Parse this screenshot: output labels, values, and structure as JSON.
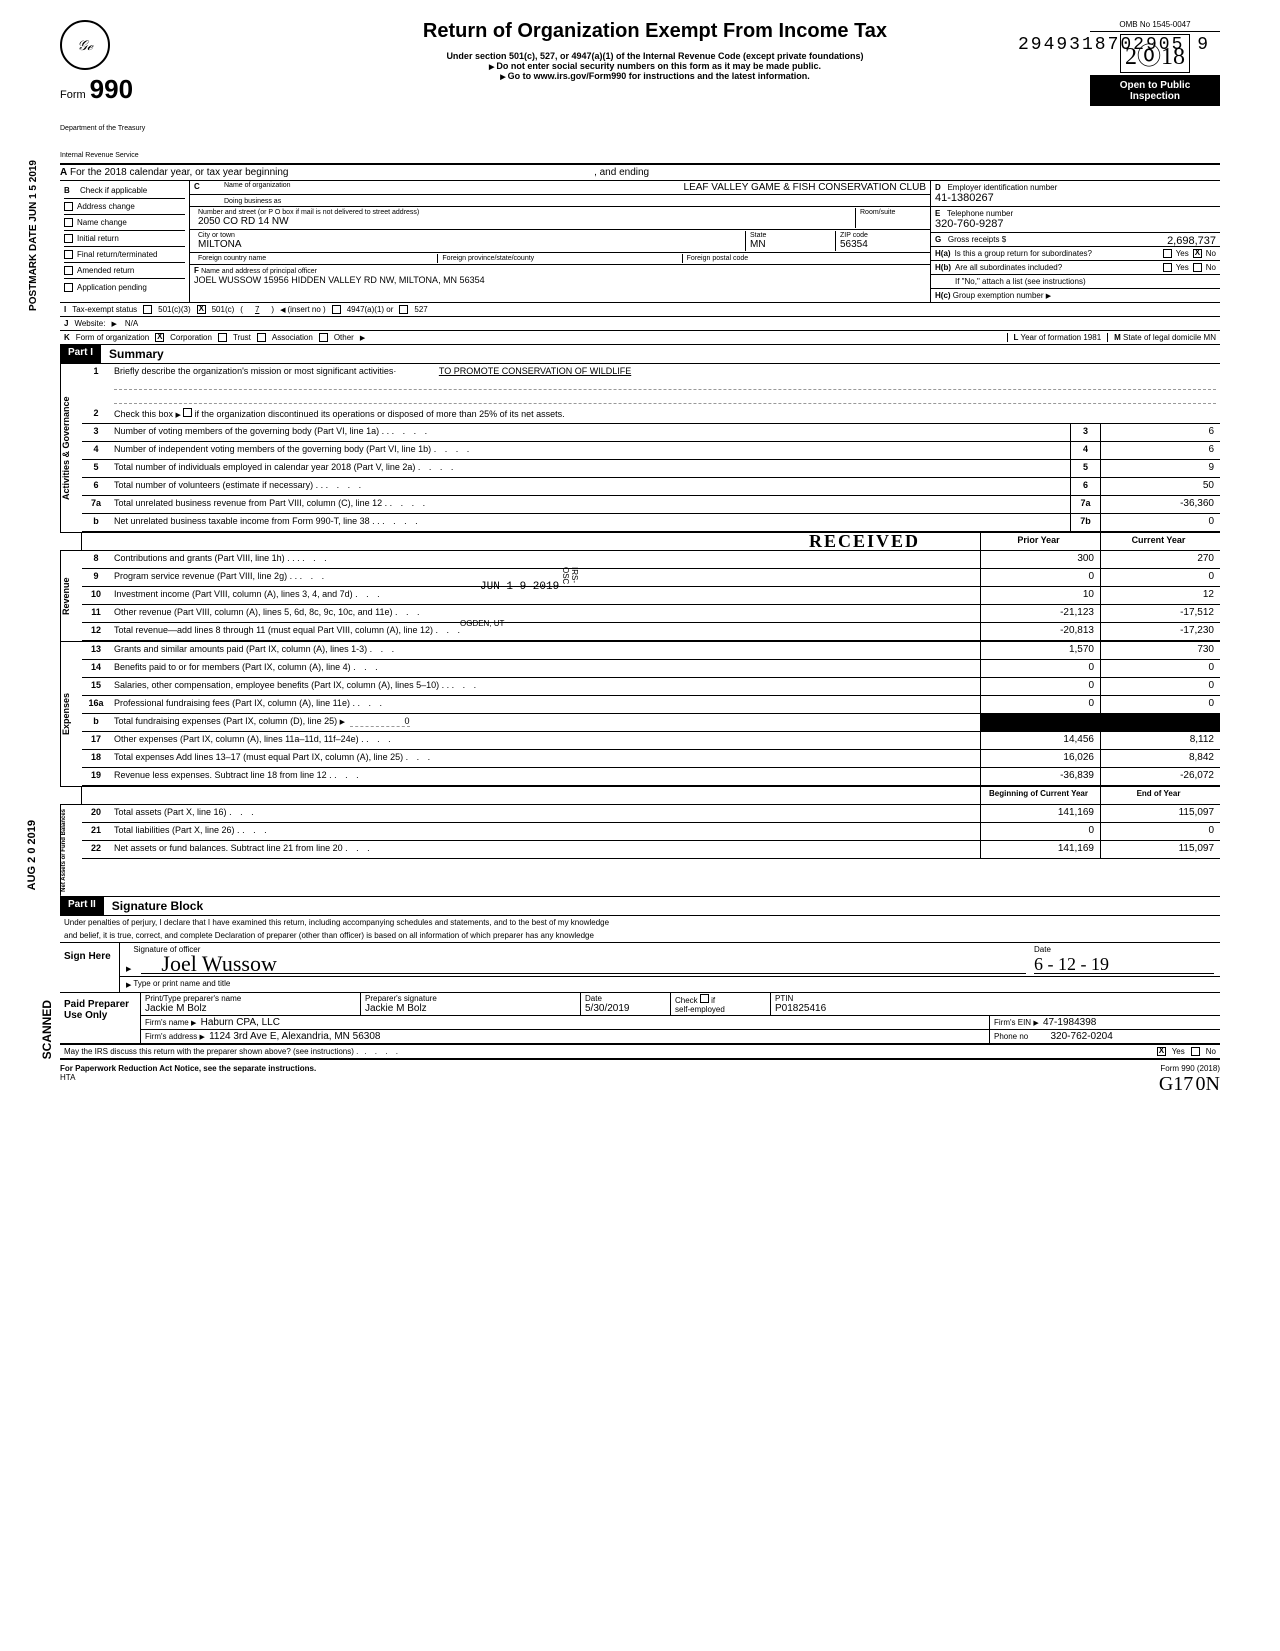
{
  "doc_id_top": "2949318702905 9",
  "side_texts": {
    "postmark": "POSTMARK DATE JUN 1 5 2019",
    "aug": "AUG 2 0 2019",
    "scanned": "SCANNED"
  },
  "header": {
    "form_word": "Form",
    "form_num": "990",
    "logo": "𝒢ℯ",
    "title": "Return of Organization Exempt From Income Tax",
    "subtitle1": "Under section 501(c), 527, or 4947(a)(1) of the Internal Revenue Code (except private foundations)",
    "subtitle2": "Do not enter social security numbers on this form as it may be made public.",
    "subtitle3": "Go to www.irs.gov/Form990 for instructions and the latest information.",
    "dept1": "Department of the Treasury",
    "dept2": "Internal Revenue Service",
    "omb": "OMB No 1545-0047",
    "year": "2018",
    "open1": "Open to Public",
    "open2": "Inspection"
  },
  "row_a": {
    "prefix": "A",
    "text": "For the 2018 calendar year, or tax year beginning",
    "ending": ", and ending"
  },
  "col_b": {
    "hdr": "B",
    "label": "Check if applicable",
    "opts": [
      "Address change",
      "Name change",
      "Initial return",
      "Final return/terminated",
      "Amended return",
      "Application pending"
    ]
  },
  "col_c": {
    "hdr": "C",
    "name_label": "Name of organization",
    "name": "LEAF VALLEY GAME & FISH CONSERVATION CLUB",
    "dba_label": "Doing business as",
    "addr_label": "Number and street (or P O  box if mail is not delivered to street address)",
    "room_label": "Room/suite",
    "addr": "2050 CO RD 14 NW",
    "city_label": "City or town",
    "state_label": "State",
    "zip_label": "ZIP code",
    "city": "MILTONA",
    "state": "MN",
    "zip": "56354",
    "foreign_country": "Foreign country name",
    "foreign_prov": "Foreign province/state/county",
    "foreign_postal": "Foreign postal code",
    "f_label": "F",
    "f_text": "Name and address of principal officer",
    "f_val": "JOEL WUSSOW 15956 HIDDEN VALLEY RD NW, MILTONA, MN  56354"
  },
  "col_d": {
    "d_label": "D",
    "d_text": "Employer identification number",
    "d_val": "41-1380267",
    "e_label": "E",
    "e_text": "Telephone number",
    "e_val": "320-760-9287",
    "g_label": "G",
    "g_text": "Gross receipts $",
    "g_val": "2,698,737",
    "ha_label": "H(a)",
    "ha_text": "Is this a group return for subordinates?",
    "hb_label": "H(b)",
    "hb_text": "Are all subordinates included?",
    "h_note": "If \"No,\" attach a list (see instructions)",
    "hc_label": "H(c)",
    "hc_text": "Group exemption number",
    "yes": "Yes",
    "no": "No"
  },
  "row_i": {
    "label": "I",
    "text": "Tax-exempt status",
    "opt1": "501(c)(3)",
    "opt2": "501(c)",
    "paren_open": "(",
    "paren_num": "7",
    "paren_close": ")",
    "insert": "(insert no )",
    "opt3": "4947(a)(1) or",
    "opt4": "527"
  },
  "row_j": {
    "label": "J",
    "text": "Website:",
    "val": "N/A"
  },
  "row_k": {
    "label": "K",
    "text": "Form of organization",
    "opts": [
      "Corporation",
      "Trust",
      "Association",
      "Other"
    ],
    "l_label": "L",
    "l_text": "Year of formation",
    "l_val": "1981",
    "m_label": "M",
    "m_text": "State of legal domicile",
    "m_val": "MN"
  },
  "part1": {
    "hdr": "Part I",
    "title": "Summary",
    "vside1": "Activities & Governance",
    "vside2": "Revenue",
    "vside3": "Expenses",
    "vside4": "Net Assets or Fund Balances",
    "line1_txt": "Briefly describe the organization's mission or most significant activities·",
    "line1_val": "TO PROMOTE CONSERVATION OF WILDLIFE",
    "line2_txt": "Check this box",
    "line2_txt2": "if the organization discontinued its operations or disposed of more than 25% of its net assets.",
    "prior_hdr": "Prior Year",
    "curr_hdr": "Current Year",
    "begin_hdr": "Beginning of Current Year",
    "end_hdr": "End of Year",
    "stamp_received": "RECEIVED",
    "stamp_date": "JUN 1 9 2019",
    "stamp_irs": "IRS-OSC",
    "stamp_ogden": "OGDEN, UT",
    "lines_gov": [
      {
        "n": "3",
        "t": "Number of voting members of the governing body (Part VI, line 1a) . .",
        "box": "3",
        "v": "6"
      },
      {
        "n": "4",
        "t": "Number of independent voting members of the governing body (Part VI, line 1b)",
        "box": "4",
        "v": "6"
      },
      {
        "n": "5",
        "t": "Total number of individuals employed in calendar year 2018 (Part V, line 2a)",
        "box": "5",
        "v": "9"
      },
      {
        "n": "6",
        "t": "Total number of volunteers (estimate if necessary) . .",
        "box": "6",
        "v": "50"
      },
      {
        "n": "7a",
        "t": "Total unrelated business revenue from Part VIII, column (C), line 12 .",
        "box": "7a",
        "v": "-36,360"
      },
      {
        "n": "b",
        "t": "Net unrelated business taxable income from Form 990-T, line 38 . .",
        "box": "7b",
        "v": "0"
      }
    ],
    "lines_rev": [
      {
        "n": "8",
        "t": "Contributions and grants (Part VIII, line 1h) . . .",
        "p": "300",
        "c": "270"
      },
      {
        "n": "9",
        "t": "Program service revenue (Part VIII, line 2g) . .",
        "p": "0",
        "c": "0"
      },
      {
        "n": "10",
        "t": "Investment income (Part VIII, column (A), lines 3, 4, and 7d)",
        "p": "10",
        "c": "12"
      },
      {
        "n": "11",
        "t": "Other revenue (Part VIII, column (A), lines 5, 6d, 8c, 9c, 10c, and 11e)",
        "p": "-21,123",
        "c": "-17,512"
      },
      {
        "n": "12",
        "t": "Total revenue—add lines 8 through 11 (must equal Part VIII, column (A), line 12)",
        "p": "-20,813",
        "c": "-17,230"
      }
    ],
    "lines_exp": [
      {
        "n": "13",
        "t": "Grants and similar amounts paid (Part IX, column (A), lines 1-3)",
        "p": "1,570",
        "c": "730"
      },
      {
        "n": "14",
        "t": "Benefits paid to or for members (Part IX, column (A), line 4)",
        "p": "0",
        "c": "0"
      },
      {
        "n": "15",
        "t": "Salaries, other compensation, employee benefits (Part IX, column (A), lines 5–10) . .",
        "p": "0",
        "c": "0"
      },
      {
        "n": "16a",
        "t": "Professional fundraising fees (Part IX, column (A), line 11e) .",
        "p": "0",
        "c": "0"
      },
      {
        "n": "b",
        "t": "Total fundraising expenses (Part IX, column (D), line 25)",
        "inl": "0",
        "blk": true
      },
      {
        "n": "17",
        "t": "Other expenses (Part IX, column (A), lines 11a–11d, 11f–24e) .",
        "p": "14,456",
        "c": "8,112"
      },
      {
        "n": "18",
        "t": "Total expenses Add lines 13–17 (must equal Part IX, column (A), line 25)",
        "p": "16,026",
        "c": "8,842"
      },
      {
        "n": "19",
        "t": "Revenue less expenses. Subtract line 18 from line 12 .",
        "p": "-36,839",
        "c": "-26,072"
      }
    ],
    "lines_net": [
      {
        "n": "20",
        "t": "Total assets (Part X, line 16)",
        "p": "141,169",
        "c": "115,097"
      },
      {
        "n": "21",
        "t": "Total liabilities (Part X, line 26) .",
        "p": "0",
        "c": "0"
      },
      {
        "n": "22",
        "t": "Net assets or fund balances. Subtract line 21 from line 20",
        "p": "141,169",
        "c": "115,097"
      }
    ]
  },
  "part2": {
    "hdr": "Part II",
    "title": "Signature Block",
    "perjury1": "Under penalties of perjury, I declare that I have examined this return, including accompanying schedules and statements, and to the best of my knowledge",
    "perjury2": "and belief, it is true, correct, and complete Declaration of preparer (other than officer) is based on all information of which preparer has any knowledge",
    "sign_here": "Sign Here",
    "sig_of_officer": "Signature of officer",
    "sig_cursive": "Joel Wussow",
    "date_label": "Date",
    "date_cursive": "6 - 12 - 19",
    "type_name": "Type or print name and title",
    "paid": "Paid Preparer Use Only",
    "prep_name_label": "Print/Type preparer's name",
    "prep_name": "Jackie M Bolz",
    "prep_sig_label": "Preparer's signature",
    "prep_sig": "Jackie M Bolz",
    "prep_date_label": "Date",
    "prep_date": "5/30/2019",
    "check_if": "Check",
    "self_emp": "self-employed",
    "ptin_label": "PTIN",
    "ptin": "P01825416",
    "firm_name_label": "Firm's name",
    "firm_name": "Haburn CPA, LLC",
    "firm_ein_label": "Firm's EIN",
    "firm_ein": "47-1984398",
    "firm_addr_label": "Firm's address",
    "firm_addr": "1124 3rd Ave E, Alexandria, MN 56308",
    "phone_label": "Phone no",
    "phone": "320-762-0204",
    "may_irs": "May the IRS discuss this return with the preparer shown above? (see instructions) .",
    "if_label": "if"
  },
  "footer": {
    "left": "For Paperwork Reduction Act Notice, see the separate instructions.",
    "hta": "HTA",
    "right": "Form 990 (2018)",
    "hand1": "G17",
    "hand2": "0N"
  }
}
